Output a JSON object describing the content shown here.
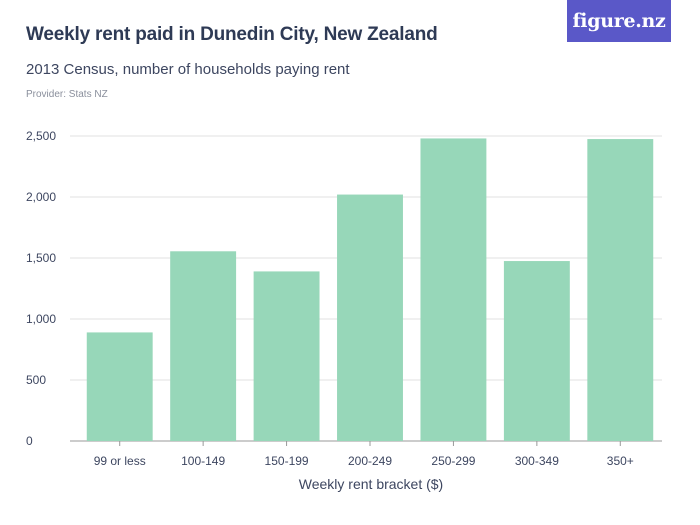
{
  "header": {
    "title": "Weekly rent paid in Dunedin City, New Zealand",
    "subtitle": "2013 Census, number of households paying rent",
    "provider": "Provider: Stats NZ",
    "logo_text": "figure.nz"
  },
  "colors": {
    "bar": "#97d7b9",
    "grid": "#e0e0e0",
    "baseline": "#999999",
    "logo_bg": "#5a58c8"
  },
  "chart_data": {
    "type": "bar",
    "title": "Weekly rent paid in Dunedin City, New Zealand",
    "subtitle": "2013 Census, number of households paying rent",
    "xlabel": "Weekly rent bracket ($)",
    "ylabel": "",
    "ylim": [
      0,
      2500
    ],
    "yticks": [
      0,
      500,
      1000,
      1500,
      2000,
      2500
    ],
    "ytick_labels": [
      "0",
      "500",
      "1,000",
      "1,500",
      "2,000",
      "2,500"
    ],
    "grid": true,
    "legend": "none",
    "categories": [
      "99 or less",
      "100-149",
      "150-199",
      "200-249",
      "250-299",
      "300-349",
      "350+"
    ],
    "values": [
      890,
      1555,
      1390,
      2020,
      2480,
      1475,
      2475
    ]
  }
}
